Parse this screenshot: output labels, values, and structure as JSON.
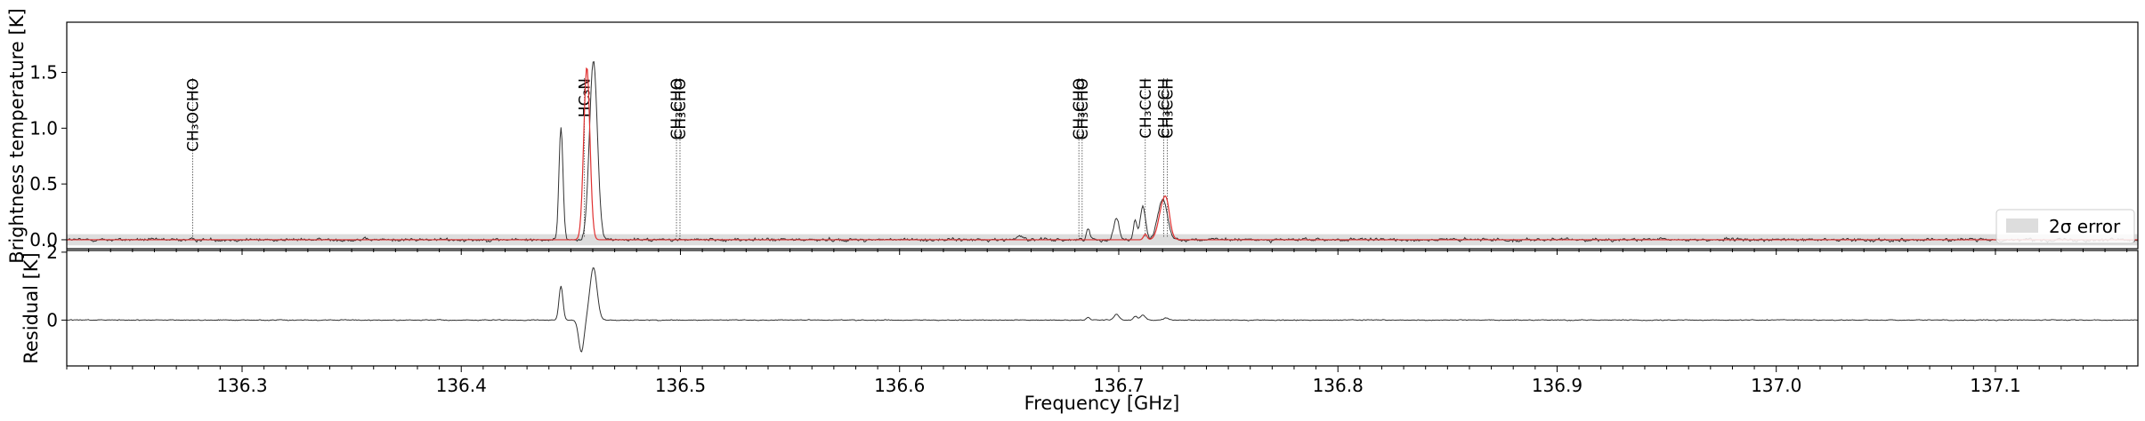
{
  "chart_data": [
    {
      "type": "line",
      "panel": "spectrum",
      "xlabel": "",
      "ylabel": "Brightness temperature [K]",
      "xlim": [
        136.22,
        137.165
      ],
      "ylim": [
        -0.08,
        1.95
      ],
      "yticks": [
        {
          "value": 0.0,
          "label": "0.0"
        },
        {
          "value": 0.5,
          "label": "0.5"
        },
        {
          "value": 1.0,
          "label": "1.0"
        },
        {
          "value": 1.5,
          "label": "1.5"
        }
      ],
      "error_band": {
        "lower": -0.05,
        "upper": 0.05,
        "color": "#dddddd"
      },
      "series": [
        {
          "role": "observed",
          "color": "#333333",
          "noise_sigma": 0.022,
          "features": [
            {
              "center": 136.4455,
              "amplitude": 1.02,
              "width": 0.0009
            },
            {
              "center": 136.4603,
              "amplitude": 1.6,
              "width": 0.0018
            },
            {
              "center": 136.655,
              "amplitude": 0.04,
              "width": 0.0015
            },
            {
              "center": 136.686,
              "amplitude": 0.1,
              "width": 0.0008
            },
            {
              "center": 136.699,
              "amplitude": 0.2,
              "width": 0.0012
            },
            {
              "center": 136.7075,
              "amplitude": 0.17,
              "width": 0.0008
            },
            {
              "center": 136.711,
              "amplitude": 0.3,
              "width": 0.0012
            },
            {
              "center": 136.72,
              "amplitude": 0.36,
              "width": 0.0022
            }
          ]
        },
        {
          "role": "model",
          "color": "#e03030",
          "features": [
            {
              "center": 136.4573,
              "amplitude": 1.55,
              "width": 0.0014
            },
            {
              "center": 136.7121,
              "amplitude": 0.05,
              "width": 0.0008
            },
            {
              "center": 136.7205,
              "amplitude": 0.34,
              "width": 0.0021
            },
            {
              "center": 136.7222,
              "amplitude": 0.1,
              "width": 0.0012
            }
          ]
        }
      ],
      "line_markers": [
        {
          "x": 136.2775,
          "label": "CH₃OCHO"
        },
        {
          "x": 136.4562,
          "label": "HC₃N"
        },
        {
          "x": 136.4982,
          "label": "CH₃CHO"
        },
        {
          "x": 136.4998,
          "label": "CH₃CHO"
        },
        {
          "x": 136.6818,
          "label": "CH₃CHO"
        },
        {
          "x": 136.6833,
          "label": "CH₃CHO"
        },
        {
          "x": 136.7121,
          "label": "CH₃CCH"
        },
        {
          "x": 136.7205,
          "label": "CH₃CCH"
        },
        {
          "x": 136.7222,
          "label": "CH₃CCH"
        }
      ],
      "legend": {
        "entries": [
          {
            "label": "2σ error",
            "color": "#dddddd"
          }
        ],
        "placement": "lower-right"
      }
    },
    {
      "type": "line",
      "panel": "residual",
      "xlabel": "Frequency [GHz]",
      "ylabel": "Residual [K]",
      "xlim": [
        136.22,
        137.165
      ],
      "ylim": [
        -1.35,
        2.05
      ],
      "yticks": [
        {
          "value": 0,
          "label": "0"
        },
        {
          "value": 2,
          "label": "2"
        }
      ],
      "xticks": [
        {
          "value": 136.3,
          "label": "136.3"
        },
        {
          "value": 136.4,
          "label": "136.4"
        },
        {
          "value": 136.5,
          "label": "136.5"
        },
        {
          "value": 136.6,
          "label": "136.6"
        },
        {
          "value": 136.7,
          "label": "136.7"
        },
        {
          "value": 136.8,
          "label": "136.8"
        },
        {
          "value": 136.9,
          "label": "136.9"
        },
        {
          "value": 137.0,
          "label": "137.0"
        },
        {
          "value": 137.1,
          "label": "137.1"
        }
      ],
      "series": [
        {
          "role": "residual",
          "color": "#333333",
          "noise_sigma": 0.02,
          "features": [
            {
              "center": 136.4455,
              "amplitude": 1.0,
              "width": 0.0009
            },
            {
              "center": 136.4548,
              "amplitude": -0.95,
              "width": 0.0012
            },
            {
              "center": 136.4603,
              "amplitude": 1.55,
              "width": 0.0016
            },
            {
              "center": 136.686,
              "amplitude": 0.08,
              "width": 0.0008
            },
            {
              "center": 136.699,
              "amplitude": 0.17,
              "width": 0.0012
            },
            {
              "center": 136.7075,
              "amplitude": 0.12,
              "width": 0.0008
            },
            {
              "center": 136.711,
              "amplitude": 0.15,
              "width": 0.0012
            },
            {
              "center": 136.7215,
              "amplitude": 0.06,
              "width": 0.0012
            }
          ]
        }
      ]
    }
  ]
}
